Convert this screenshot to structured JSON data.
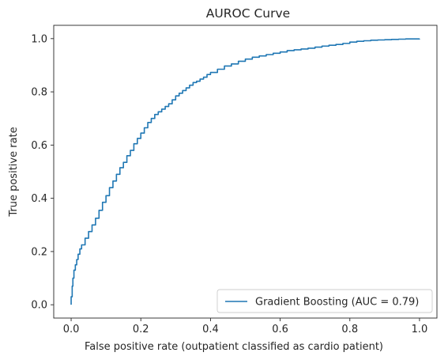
{
  "chart_data": {
    "type": "line",
    "title": "AUROC Curve",
    "xlabel": "False positive rate (outpatient classified as cardio patient)",
    "ylabel": "True positive rate",
    "xlim": [
      -0.05,
      1.05
    ],
    "ylim": [
      -0.05,
      1.05
    ],
    "x_ticks": [
      "0.0",
      "0.2",
      "0.4",
      "0.6",
      "0.8",
      "1.0"
    ],
    "y_ticks": [
      "0.0",
      "0.2",
      "0.4",
      "0.6",
      "0.8",
      "1.0"
    ],
    "grid": false,
    "legend_position": "lower-right",
    "series": [
      {
        "name": "Gradient Boosting (AUC = 0.79)",
        "color": "#1f77b4",
        "x": [
          0.0,
          0.0,
          0.003,
          0.005,
          0.008,
          0.012,
          0.016,
          0.02,
          0.025,
          0.03,
          0.04,
          0.05,
          0.06,
          0.07,
          0.08,
          0.09,
          0.1,
          0.11,
          0.12,
          0.13,
          0.14,
          0.15,
          0.16,
          0.17,
          0.18,
          0.19,
          0.2,
          0.21,
          0.22,
          0.23,
          0.24,
          0.25,
          0.26,
          0.27,
          0.28,
          0.29,
          0.3,
          0.31,
          0.32,
          0.33,
          0.34,
          0.35,
          0.36,
          0.37,
          0.38,
          0.39,
          0.4,
          0.42,
          0.44,
          0.46,
          0.48,
          0.5,
          0.52,
          0.54,
          0.56,
          0.58,
          0.6,
          0.62,
          0.64,
          0.66,
          0.68,
          0.7,
          0.72,
          0.74,
          0.76,
          0.78,
          0.8,
          0.82,
          0.84,
          0.86,
          0.88,
          0.9,
          0.92,
          0.94,
          0.96,
          0.98,
          1.0
        ],
        "y": [
          0.0,
          0.03,
          0.07,
          0.1,
          0.13,
          0.15,
          0.17,
          0.19,
          0.21,
          0.225,
          0.25,
          0.275,
          0.3,
          0.325,
          0.355,
          0.385,
          0.41,
          0.44,
          0.465,
          0.49,
          0.515,
          0.535,
          0.56,
          0.58,
          0.605,
          0.625,
          0.645,
          0.665,
          0.685,
          0.7,
          0.715,
          0.725,
          0.735,
          0.745,
          0.755,
          0.77,
          0.785,
          0.795,
          0.805,
          0.815,
          0.825,
          0.835,
          0.84,
          0.848,
          0.855,
          0.865,
          0.873,
          0.885,
          0.897,
          0.905,
          0.915,
          0.923,
          0.93,
          0.935,
          0.94,
          0.945,
          0.95,
          0.955,
          0.958,
          0.961,
          0.964,
          0.968,
          0.972,
          0.975,
          0.978,
          0.982,
          0.987,
          0.99,
          0.992,
          0.994,
          0.995,
          0.996,
          0.997,
          0.998,
          0.999,
          0.999,
          1.0
        ]
      }
    ]
  }
}
